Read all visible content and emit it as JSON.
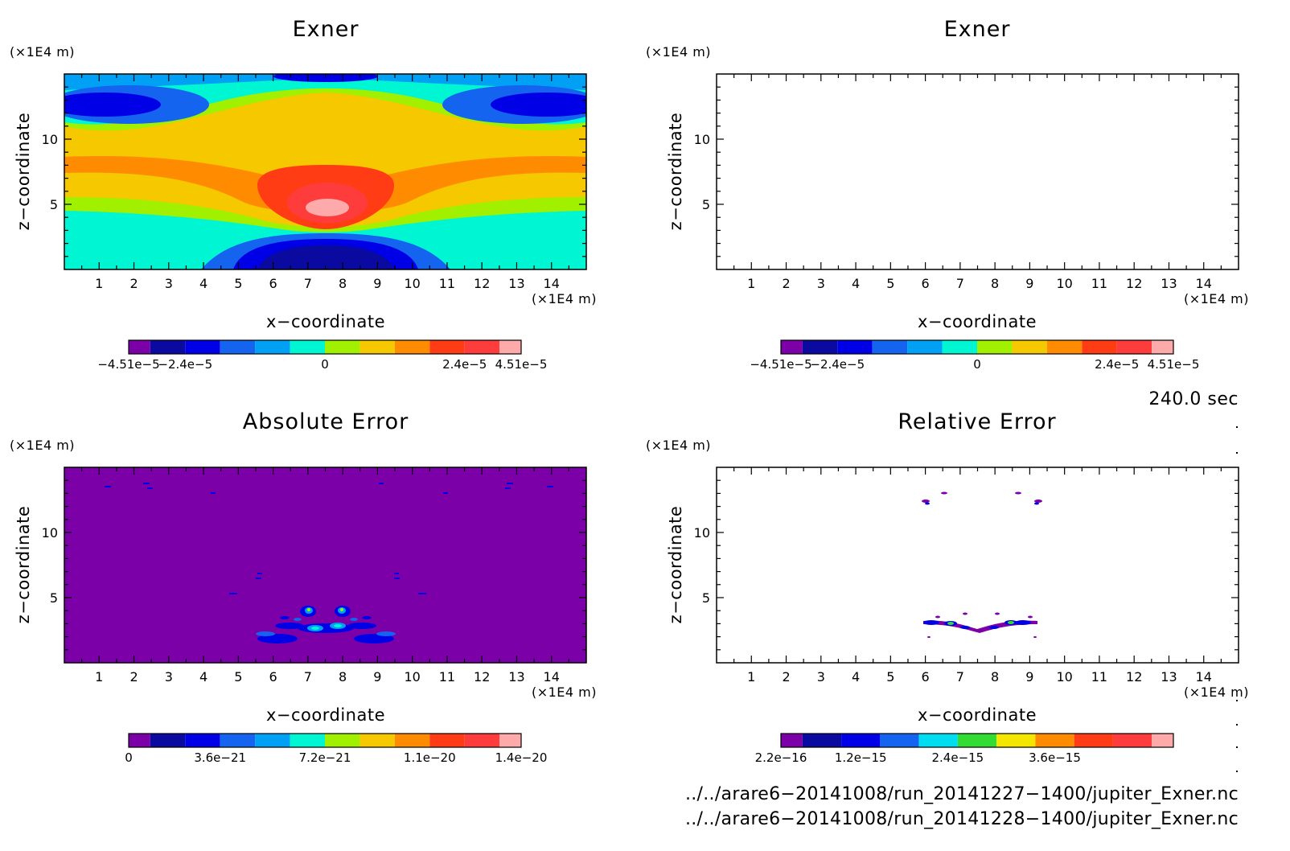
{
  "chart_data": [
    {
      "type": "heatmap",
      "title": "Exner",
      "xlabel": "x−coordinate",
      "ylabel": "z−coordinate",
      "x_unit": "(×1E4 m)",
      "z_unit": "(×1E4 m)",
      "x_ticks": [
        "1",
        "2",
        "3",
        "4",
        "5",
        "6",
        "7",
        "8",
        "9",
        "10",
        "11",
        "12",
        "13",
        "14"
      ],
      "z_ticks": [
        "5",
        "10"
      ],
      "xlim": [
        0,
        15
      ],
      "zlim": [
        0,
        15
      ],
      "colorbar": {
        "colors": [
          "#7b00a8",
          "#0a0aa0",
          "#0000e6",
          "#1464f0",
          "#00a0f5",
          "#00f5d2",
          "#a0f000",
          "#f5c800",
          "#ff8c00",
          "#ff3c14",
          "#ff3c3c",
          "#ffaaaa"
        ],
        "labels": [
          "−4.51e−5",
          "−2.4e−5",
          "0",
          "2.4e−5",
          "4.51e−5"
        ],
        "label_levels": [
          0,
          2,
          6,
          10,
          12
        ]
      }
    },
    {
      "type": "heatmap",
      "title": "Exner",
      "xlabel": "x−coordinate",
      "ylabel": "z−coordinate",
      "x_unit": "(×1E4 m)",
      "z_unit": "(×1E4 m)",
      "x_ticks": [
        "1",
        "2",
        "3",
        "4",
        "5",
        "6",
        "7",
        "8",
        "9",
        "10",
        "11",
        "12",
        "13",
        "14"
      ],
      "z_ticks": [
        "5",
        "10"
      ],
      "xlim": [
        0,
        15
      ],
      "zlim": [
        0,
        15
      ],
      "colorbar": {
        "colors": [
          "#7b00a8",
          "#0a0aa0",
          "#0000e6",
          "#1464f0",
          "#00a0f5",
          "#00f5d2",
          "#a0f000",
          "#f5c800",
          "#ff8c00",
          "#ff3c14",
          "#ff3c3c",
          "#ffaaaa"
        ],
        "labels": [
          "−4.51e−5",
          "−2.4e−5",
          "0",
          "2.4e−5",
          "4.51e−5"
        ],
        "label_levels": [
          0,
          2,
          6,
          10,
          12
        ]
      }
    },
    {
      "type": "heatmap",
      "title": "Absolute Error",
      "xlabel": "x−coordinate",
      "ylabel": "z−coordinate",
      "x_unit": "(×1E4 m)",
      "z_unit": "(×1E4 m)",
      "x_ticks": [
        "1",
        "2",
        "3",
        "4",
        "5",
        "6",
        "7",
        "8",
        "9",
        "10",
        "11",
        "12",
        "13",
        "14"
      ],
      "z_ticks": [
        "5",
        "10"
      ],
      "xlim": [
        0,
        15
      ],
      "zlim": [
        0,
        15
      ],
      "colorbar": {
        "colors": [
          "#7b00a8",
          "#0a0aa0",
          "#0000e6",
          "#1464f0",
          "#00a0f5",
          "#00f5d2",
          "#a0f000",
          "#f5c800",
          "#ff8c00",
          "#ff3c14",
          "#ff3c3c",
          "#ffaaaa"
        ],
        "labels": [
          "0",
          "3.6e−21",
          "7.2e−21",
          "1.1e−20",
          "1.4e−20"
        ],
        "label_levels": [
          0,
          3,
          6,
          9,
          12
        ]
      }
    },
    {
      "type": "heatmap",
      "title": "Relative Error",
      "xlabel": "x−coordinate",
      "ylabel": "z−coordinate",
      "x_unit": "(×1E4 m)",
      "z_unit": "(×1E4 m)",
      "x_ticks": [
        "1",
        "2",
        "3",
        "4",
        "5",
        "6",
        "7",
        "8",
        "9",
        "10",
        "11",
        "12",
        "13",
        "14"
      ],
      "z_ticks": [
        "5",
        "10"
      ],
      "xlim": [
        0,
        15
      ],
      "zlim": [
        0,
        15
      ],
      "colorbar": {
        "colors": [
          "#7b00a8",
          "#0a0aa0",
          "#0000e6",
          "#1464f0",
          "#00dcf0",
          "#32dc32",
          "#f5e600",
          "#ff8c00",
          "#ff3c14",
          "#ff3c3c",
          "#ffaaaa"
        ],
        "labels": [
          "2.2e−16",
          "1.2e−15",
          "2.4e−15",
          "3.6e−15"
        ],
        "label_levels": [
          0,
          2.5,
          5,
          7.5
        ]
      }
    }
  ],
  "time": "240.0 sec",
  "files": [
    "../../arare6−20141008/run_20141227−1400/jupiter_Exner.nc",
    "../../arare6−20141008/run_20141228−1400/jupiter_Exner.nc"
  ]
}
